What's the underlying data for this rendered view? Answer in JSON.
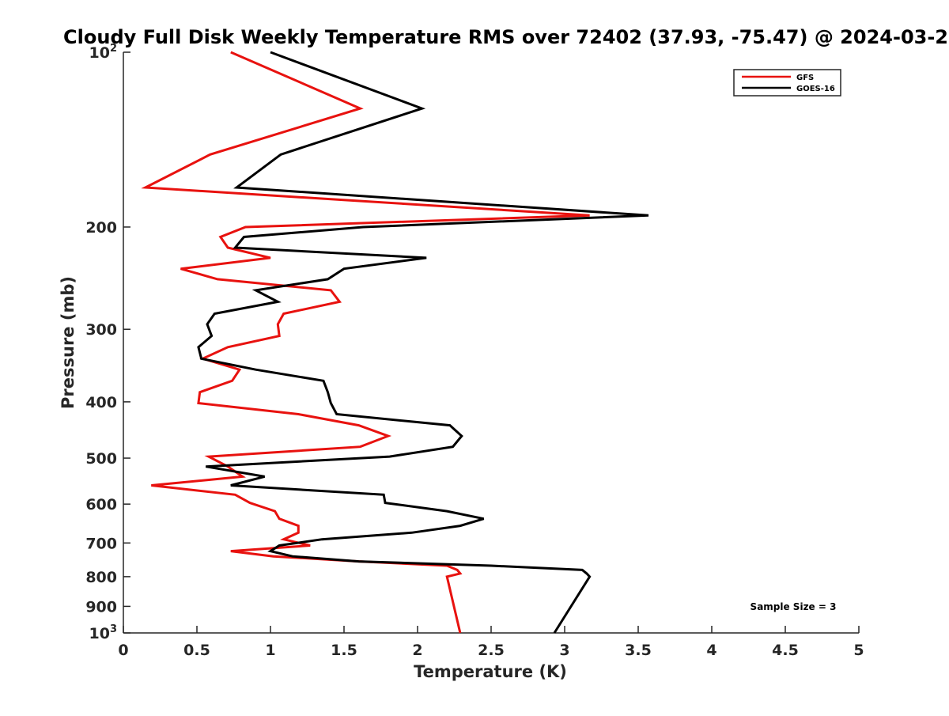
{
  "chart_data": {
    "type": "line",
    "title": "Cloudy Full Disk Weekly Temperature RMS over 72402 (37.93, -75.47) @ 2024-03-2",
    "xlabel": "Temperature (K)",
    "ylabel": "Pressure (mb)",
    "xlim": [
      0,
      5
    ],
    "ylim": [
      100,
      1000
    ],
    "y_scale": "log",
    "y_reversed": true,
    "grid": false,
    "legend_position": "top-right",
    "x_ticks": [
      "0",
      "0.5",
      "1",
      "1.5",
      "2",
      "2.5",
      "3",
      "3.5",
      "4",
      "4.5",
      "5"
    ],
    "x_tick_values": [
      0,
      0.5,
      1,
      1.5,
      2,
      2.5,
      3,
      3.5,
      4,
      4.5,
      5
    ],
    "y_ticks": [
      {
        "value": 100,
        "label": "10",
        "sup": "2"
      },
      {
        "value": 200,
        "label": "200",
        "sup": ""
      },
      {
        "value": 300,
        "label": "300",
        "sup": ""
      },
      {
        "value": 400,
        "label": "400",
        "sup": ""
      },
      {
        "value": 500,
        "label": "500",
        "sup": ""
      },
      {
        "value": 600,
        "label": "600",
        "sup": ""
      },
      {
        "value": 700,
        "label": "700",
        "sup": ""
      },
      {
        "value": 800,
        "label": "800",
        "sup": ""
      },
      {
        "value": 900,
        "label": "900",
        "sup": ""
      },
      {
        "value": 1000,
        "label": "10",
        "sup": "3"
      }
    ],
    "annotation": "Sample Size = 3",
    "series": [
      {
        "name": "GFS",
        "color": "#e8120f",
        "points": [
          [
            0.73,
            100
          ],
          [
            1.61,
            125
          ],
          [
            0.59,
            150
          ],
          [
            0.15,
            171
          ],
          [
            3.17,
            191
          ],
          [
            0.83,
            200
          ],
          [
            0.66,
            208
          ],
          [
            0.71,
            217
          ],
          [
            1.0,
            226
          ],
          [
            0.39,
            236
          ],
          [
            0.64,
            246
          ],
          [
            1.41,
            257
          ],
          [
            1.47,
            269
          ],
          [
            1.09,
            282
          ],
          [
            1.05,
            294
          ],
          [
            1.06,
            308
          ],
          [
            0.71,
            322
          ],
          [
            0.54,
            337
          ],
          [
            0.79,
            352
          ],
          [
            0.74,
            368
          ],
          [
            0.52,
            385
          ],
          [
            0.51,
            402
          ],
          [
            1.19,
            420
          ],
          [
            1.6,
            439
          ],
          [
            1.8,
            458
          ],
          [
            1.61,
            478
          ],
          [
            0.58,
            497
          ],
          [
            0.71,
            517
          ],
          [
            0.81,
            538
          ],
          [
            0.19,
            557
          ],
          [
            0.76,
            578
          ],
          [
            0.86,
            597
          ],
          [
            1.03,
            617
          ],
          [
            1.06,
            636
          ],
          [
            1.19,
            654
          ],
          [
            1.19,
            672
          ],
          [
            1.09,
            690
          ],
          [
            1.27,
            707
          ],
          [
            0.73,
            723
          ],
          [
            1.02,
            738
          ],
          [
            1.6,
            753
          ],
          [
            2.2,
            766
          ],
          [
            2.27,
            779
          ],
          [
            2.29,
            790
          ],
          [
            2.2,
            800
          ],
          [
            2.29,
            1000
          ]
        ]
      },
      {
        "name": "GOES-16",
        "color": "#000000",
        "points": [
          [
            1.0,
            100
          ],
          [
            2.03,
            125
          ],
          [
            1.07,
            150
          ],
          [
            0.77,
            171
          ],
          [
            3.57,
            191
          ],
          [
            1.63,
            200
          ],
          [
            0.82,
            208
          ],
          [
            0.76,
            217
          ],
          [
            2.06,
            226
          ],
          [
            1.5,
            236
          ],
          [
            1.39,
            246
          ],
          [
            0.9,
            257
          ],
          [
            1.05,
            269
          ],
          [
            0.62,
            282
          ],
          [
            0.57,
            294
          ],
          [
            0.6,
            308
          ],
          [
            0.51,
            322
          ],
          [
            0.53,
            337
          ],
          [
            0.9,
            352
          ],
          [
            1.36,
            368
          ],
          [
            1.39,
            385
          ],
          [
            1.41,
            402
          ],
          [
            1.45,
            420
          ],
          [
            2.22,
            439
          ],
          [
            2.3,
            458
          ],
          [
            2.24,
            478
          ],
          [
            1.81,
            497
          ],
          [
            0.56,
            517
          ],
          [
            0.96,
            538
          ],
          [
            0.73,
            557
          ],
          [
            1.77,
            578
          ],
          [
            1.78,
            597
          ],
          [
            2.2,
            617
          ],
          [
            2.45,
            636
          ],
          [
            2.29,
            654
          ],
          [
            1.96,
            672
          ],
          [
            1.35,
            690
          ],
          [
            1.06,
            707
          ],
          [
            1.0,
            723
          ],
          [
            1.15,
            738
          ],
          [
            1.6,
            753
          ],
          [
            2.5,
            766
          ],
          [
            3.12,
            779
          ],
          [
            3.15,
            790
          ],
          [
            3.17,
            800
          ],
          [
            2.93,
            1000
          ]
        ]
      }
    ]
  }
}
